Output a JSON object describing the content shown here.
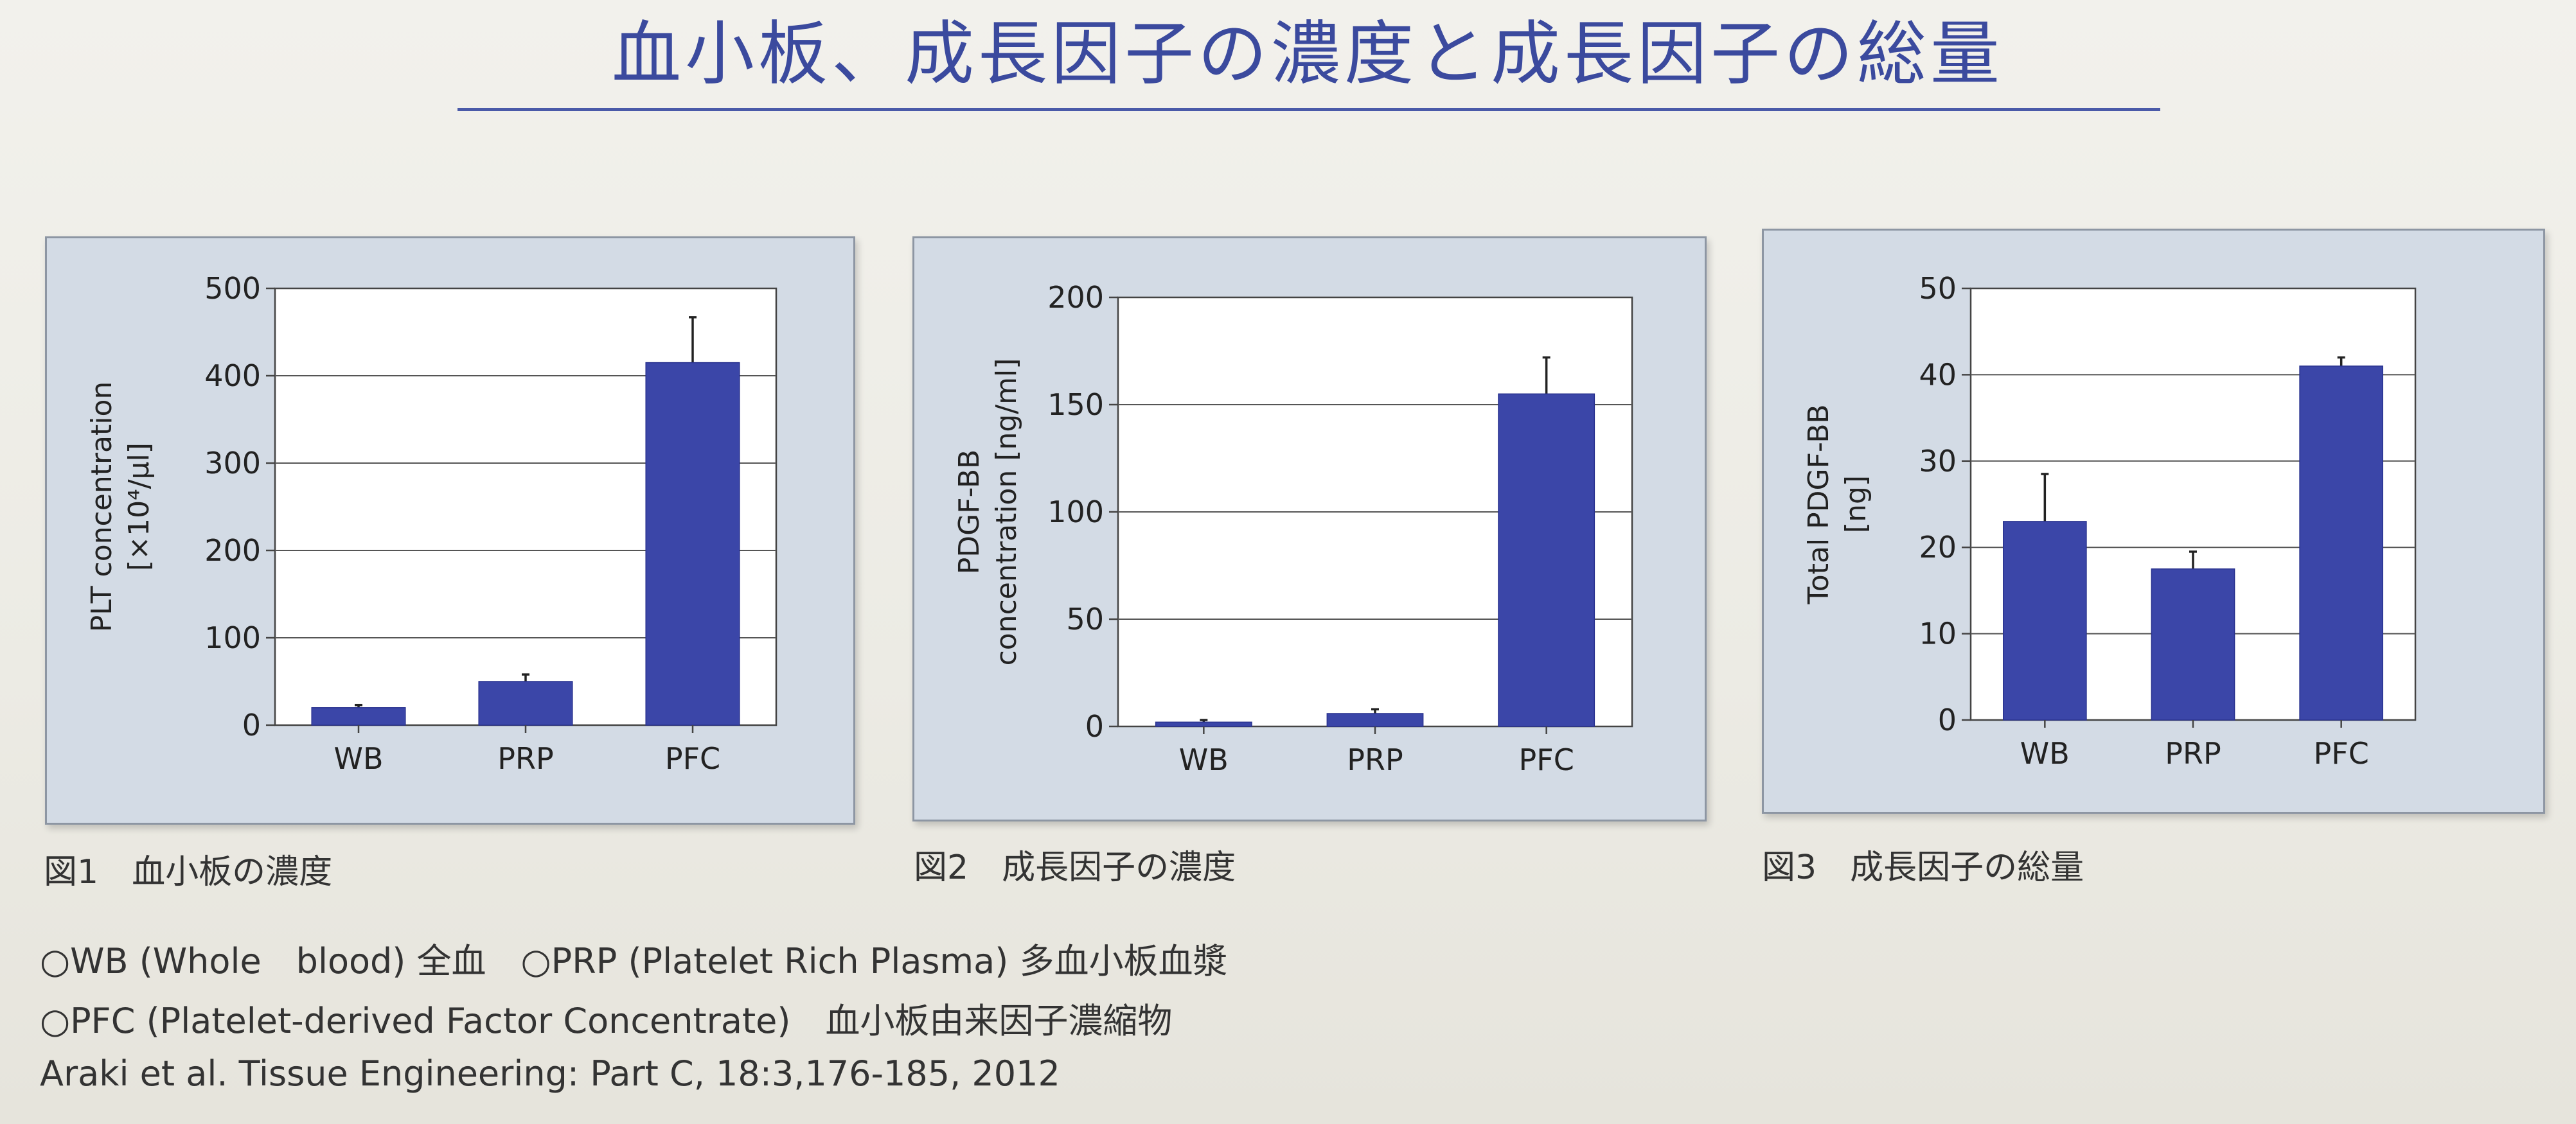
{
  "header": {
    "title": "血小板、成長因子の濃度と成長因子の総量"
  },
  "colors": {
    "bar": "#3b46a8",
    "title": "#3b4a9e",
    "panel": "#d3dbe5"
  },
  "chart_data": [
    {
      "type": "bar",
      "categories": [
        "WB",
        "PRP",
        "PFC"
      ],
      "values": [
        20,
        50,
        415
      ],
      "errors": [
        3,
        8,
        52
      ],
      "ylabel": [
        "PLT concentration",
        "[×10⁴/μl]"
      ],
      "ylim": [
        0,
        500
      ],
      "yticks": [
        0,
        100,
        200,
        300,
        400,
        500
      ],
      "grid": true,
      "caption": "図1　血小板の濃度"
    },
    {
      "type": "bar",
      "categories": [
        "WB",
        "PRP",
        "PFC"
      ],
      "values": [
        2,
        6,
        155
      ],
      "errors": [
        1,
        2,
        17
      ],
      "ylabel": [
        "PDGF-BB",
        "concentration [ng/ml]"
      ],
      "ylim": [
        0,
        200
      ],
      "yticks": [
        0,
        50,
        100,
        150,
        200
      ],
      "grid": true,
      "caption": "図2　成長因子の濃度"
    },
    {
      "type": "bar",
      "categories": [
        "WB",
        "PRP",
        "PFC"
      ],
      "values": [
        23,
        17.5,
        41
      ],
      "errors": [
        5.5,
        2,
        1
      ],
      "ylabel": [
        "Total PDGF-BB",
        "[ng]"
      ],
      "ylim": [
        0,
        50
      ],
      "yticks": [
        0,
        10,
        20,
        30,
        40,
        50
      ],
      "grid": true,
      "caption": "図3　成長因子の総量"
    }
  ],
  "notes": {
    "line1": "○WB (Whole　blood) 全血　○PRP (Platelet Rich Plasma) 多血小板血漿",
    "line2": "○PFC (Platelet-derived Factor Concentrate)　血小板由来因子濃縮物",
    "citation": "Araki et al. Tissue Engineering: Part C, 18:3,176-185, 2012"
  }
}
